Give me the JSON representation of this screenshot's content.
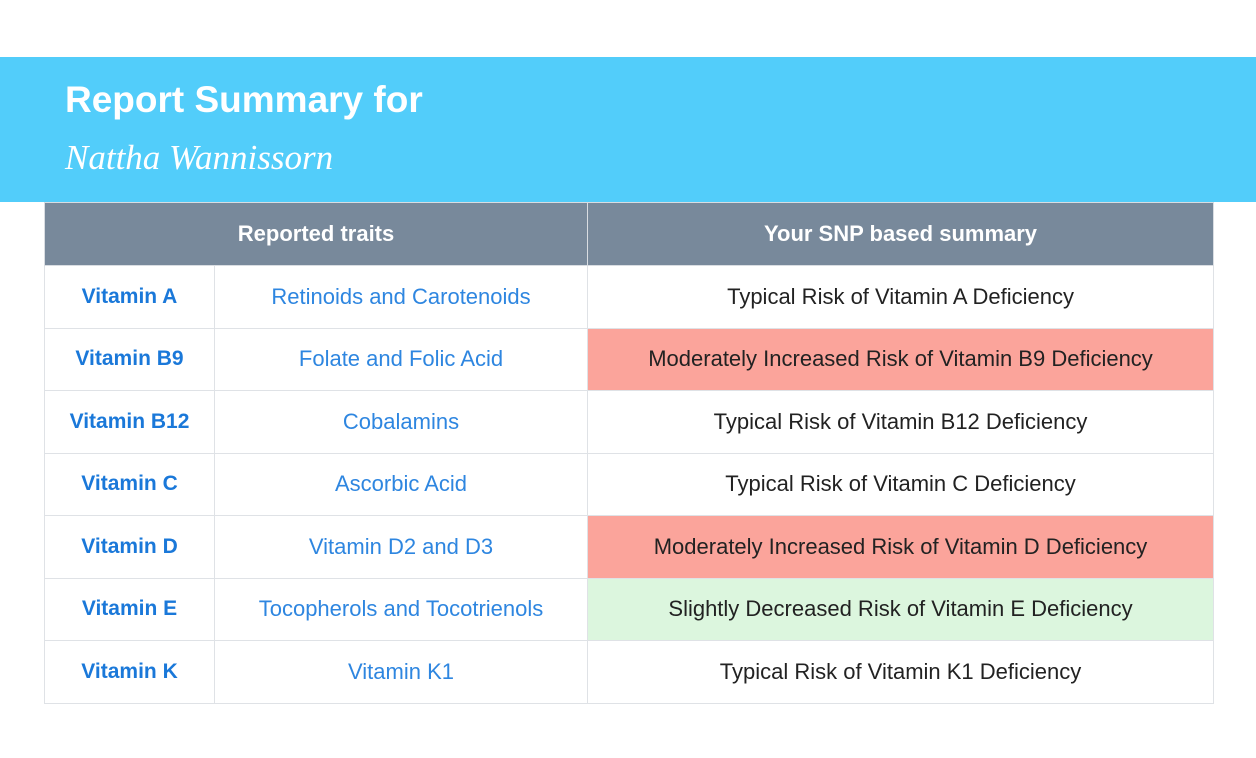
{
  "header": {
    "title": "Report Summary for",
    "name": "Nattha Wannissorn"
  },
  "table": {
    "columns": [
      "Reported traits",
      "Your SNP based summary"
    ],
    "rows": [
      {
        "vitamin": "Vitamin A",
        "trait": "Retinoids and Carotenoids",
        "summary": "Typical Risk of Vitamin A Deficiency",
        "status": "typical"
      },
      {
        "vitamin": "Vitamin B9",
        "trait": "Folate and Folic Acid",
        "summary": "Moderately Increased Risk of Vitamin B9 Deficiency",
        "status": "increased"
      },
      {
        "vitamin": "Vitamin B12",
        "trait": "Cobalamins",
        "summary": "Typical Risk of Vitamin B12 Deficiency",
        "status": "typical"
      },
      {
        "vitamin": "Vitamin C",
        "trait": "Ascorbic Acid",
        "summary": "Typical Risk of Vitamin C Deficiency",
        "status": "typical"
      },
      {
        "vitamin": "Vitamin D",
        "trait": "Vitamin D2 and D3",
        "summary": "Moderately Increased Risk of Vitamin D Deficiency",
        "status": "increased"
      },
      {
        "vitamin": "Vitamin E",
        "trait": "Tocopherols and Tocotrienols",
        "summary": "Slightly Decreased Risk of Vitamin E Deficiency",
        "status": "decreased"
      },
      {
        "vitamin": "Vitamin K",
        "trait": "Vitamin K1",
        "summary": "Typical Risk of Vitamin K1 Deficiency",
        "status": "typical"
      }
    ]
  },
  "colors": {
    "banner": "#52cdfa",
    "header_row": "#78899b",
    "increased": "#fba49b",
    "decreased": "#dcf6de",
    "typical": "#ffffff",
    "vitamin_text": "#1a78d9",
    "trait_text": "#2e86e0"
  }
}
